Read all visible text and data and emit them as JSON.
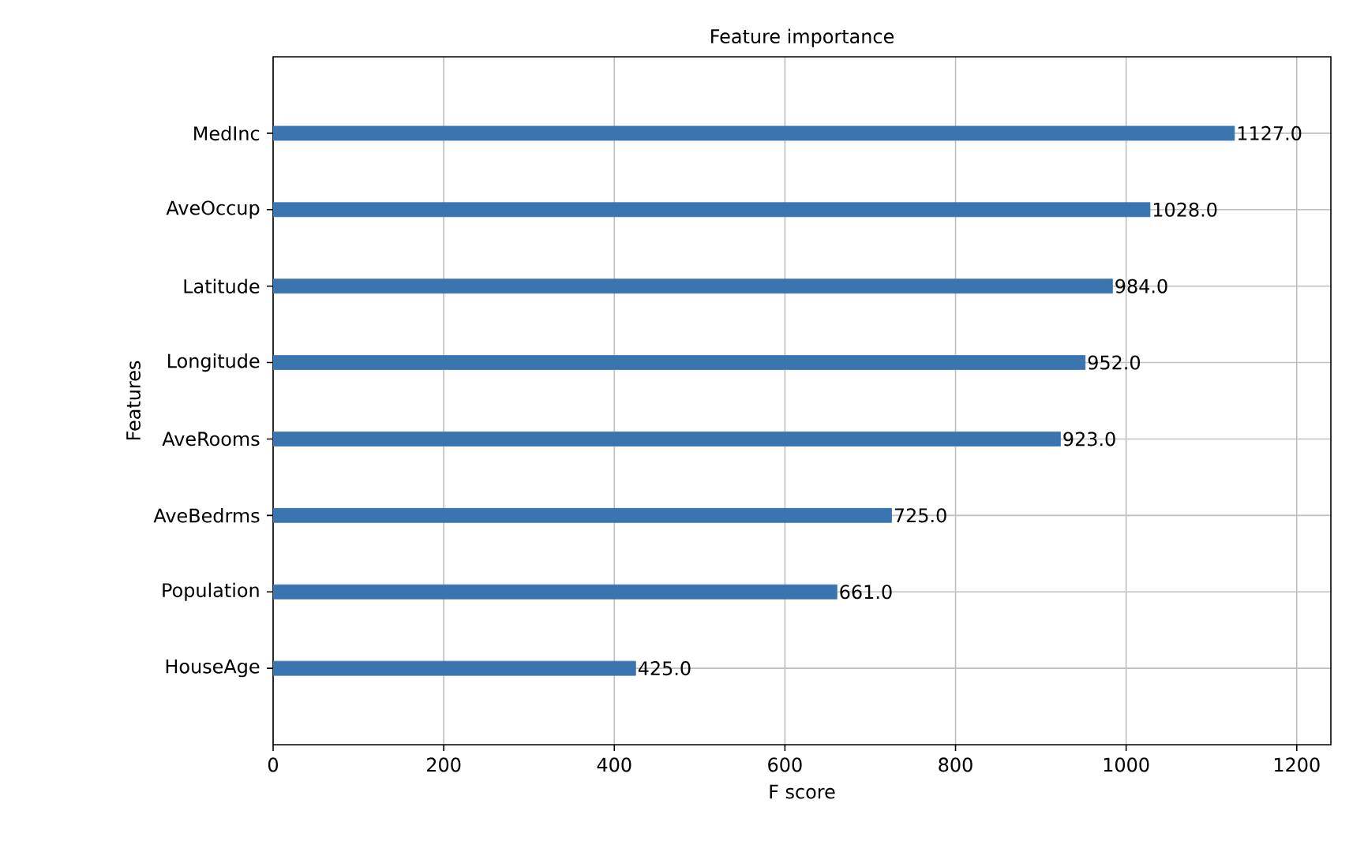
{
  "chart_data": {
    "type": "bar",
    "orientation": "horizontal",
    "title": "Feature importance",
    "xlabel": "F score",
    "ylabel": "Features",
    "categories": [
      "MedInc",
      "AveOccup",
      "Latitude",
      "Longitude",
      "AveRooms",
      "AveBedrms",
      "Population",
      "HouseAge"
    ],
    "values": [
      1127,
      1028,
      984,
      952,
      923,
      725,
      661,
      425
    ],
    "value_labels": [
      "1127.0",
      "1028.0",
      "984.0",
      "952.0",
      "923.0",
      "725.0",
      "661.0",
      "425.0"
    ],
    "color": "#3a75b0",
    "xlim": [
      0,
      1240
    ],
    "xticks": [
      0,
      200,
      400,
      600,
      800,
      1000,
      1200
    ],
    "grid": true
  }
}
